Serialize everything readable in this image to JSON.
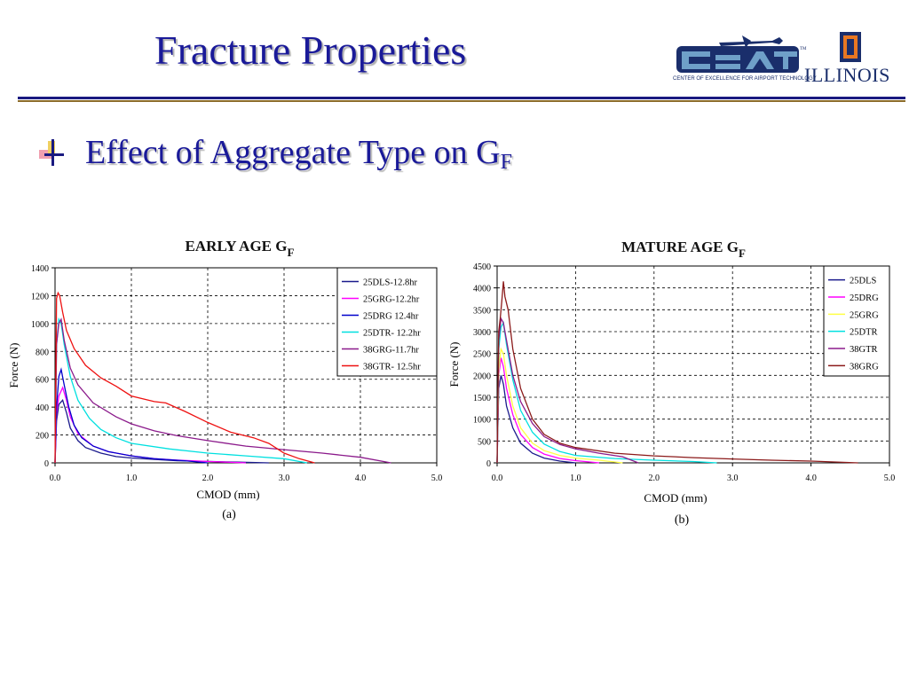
{
  "slide": {
    "title": "Fracture Properties",
    "bullet_main": "Effect of Aggregate Type on G",
    "bullet_sub": "F",
    "logo_text": "ILLINOIS",
    "logo_caption": "CENTER OF EXCELLENCE FOR AIRPORT TECHNOLOGY",
    "logo_tm": "TM"
  },
  "colors": {
    "title": "#1a1a99",
    "rule_top": "#1a1a80",
    "rule_bottom": "#8b6b2a"
  },
  "chart_data": [
    {
      "type": "line",
      "title": "EARLY AGE G",
      "title_sub": "F",
      "xlabel": "CMOD (mm)",
      "ylabel": "Force (N)",
      "caption": "(a)",
      "xlim": [
        0,
        5
      ],
      "ylim": [
        0,
        1400
      ],
      "xticks": [
        0,
        1,
        2,
        3,
        4,
        5
      ],
      "xtick_labels": [
        "0.0",
        "1.0",
        "2.0",
        "3.0",
        "4.0",
        "5.0"
      ],
      "yticks": [
        0,
        200,
        400,
        600,
        800,
        1000,
        1200,
        1400
      ],
      "ytick_labels": [
        "0",
        "200",
        "400",
        "600",
        "800",
        "1000",
        "1200",
        "1400"
      ],
      "grid": true,
      "legend_position": "top-right",
      "series": [
        {
          "name": "25DLS-12.8hr",
          "color": "#1a1a8c",
          "x": [
            0,
            0.02,
            0.05,
            0.1,
            0.15,
            0.2,
            0.3,
            0.4,
            0.6,
            0.8,
            1.0,
            1.3,
            1.6,
            2.0,
            2.4,
            2.8
          ],
          "y": [
            0,
            300,
            420,
            450,
            360,
            250,
            160,
            110,
            70,
            45,
            35,
            25,
            15,
            10,
            5,
            0
          ]
        },
        {
          "name": "25GRG-12.2hr",
          "color": "#ff00ff",
          "x": [
            0,
            0.02,
            0.05,
            0.1,
            0.15,
            0.2,
            0.3,
            0.5,
            0.7,
            1.0,
            1.3,
            1.6,
            2.0,
            2.5
          ],
          "y": [
            0,
            350,
            480,
            540,
            450,
            330,
            210,
            120,
            80,
            50,
            30,
            20,
            10,
            0
          ]
        },
        {
          "name": "25DRG 12.4hr",
          "color": "#0000cc",
          "x": [
            0,
            0.02,
            0.05,
            0.08,
            0.12,
            0.18,
            0.25,
            0.35,
            0.5,
            0.7,
            1.0,
            1.3,
            1.7,
            2.0
          ],
          "y": [
            0,
            400,
            620,
            670,
            560,
            400,
            270,
            180,
            120,
            80,
            50,
            30,
            15,
            0
          ]
        },
        {
          "name": "25DTR- 12.2hr",
          "color": "#00e0e0",
          "x": [
            0,
            0.02,
            0.05,
            0.08,
            0.12,
            0.2,
            0.3,
            0.45,
            0.6,
            0.8,
            1.0,
            1.5,
            2.0,
            2.5,
            3.0,
            3.3
          ],
          "y": [
            0,
            850,
            1030,
            1000,
            850,
            620,
            450,
            320,
            240,
            180,
            140,
            100,
            70,
            50,
            30,
            0
          ]
        },
        {
          "name": "38GRG-11.7hr",
          "color": "#8b1a8b",
          "x": [
            0,
            0.02,
            0.05,
            0.08,
            0.12,
            0.2,
            0.3,
            0.5,
            0.8,
            1.0,
            1.3,
            1.6,
            2.0,
            2.5,
            3.0,
            3.5,
            4.0,
            4.4
          ],
          "y": [
            0,
            850,
            1000,
            1030,
            880,
            680,
            560,
            430,
            330,
            280,
            230,
            195,
            160,
            120,
            95,
            70,
            40,
            0
          ]
        },
        {
          "name": "38GTR- 12.5hr",
          "color": "#ee1111",
          "x": [
            0,
            0.02,
            0.04,
            0.06,
            0.1,
            0.15,
            0.25,
            0.4,
            0.6,
            0.8,
            1.0,
            1.3,
            1.45,
            1.7,
            2.0,
            2.3,
            2.6,
            2.8,
            3.0,
            3.2,
            3.4
          ],
          "y": [
            0,
            1180,
            1220,
            1200,
            1080,
            950,
            820,
            700,
            610,
            550,
            480,
            440,
            430,
            370,
            290,
            220,
            180,
            140,
            70,
            30,
            0
          ]
        }
      ]
    },
    {
      "type": "line",
      "title": "MATURE AGE G",
      "title_sub": "F",
      "xlabel": "CMOD (mm)",
      "ylabel": "Force (N)",
      "caption": "(b)",
      "xlim": [
        0,
        5
      ],
      "ylim": [
        0,
        4500
      ],
      "xticks": [
        0,
        1,
        2,
        3,
        4,
        5
      ],
      "xtick_labels": [
        "0.0",
        "1.0",
        "2.0",
        "3.0",
        "4.0",
        "5.0"
      ],
      "yticks": [
        0,
        500,
        1000,
        1500,
        2000,
        2500,
        3000,
        3500,
        4000,
        4500
      ],
      "ytick_labels": [
        "0",
        "500",
        "1000",
        "1500",
        "2000",
        "2500",
        "3000",
        "3500",
        "4000",
        "4500"
      ],
      "grid": true,
      "legend_position": "top-right",
      "series": [
        {
          "name": "25DLS",
          "color": "#1a1a8c",
          "x": [
            0,
            0.02,
            0.05,
            0.08,
            0.12,
            0.2,
            0.3,
            0.45,
            0.6,
            0.8,
            1.0
          ],
          "y": [
            0,
            1700,
            2000,
            1800,
            1300,
            800,
            450,
            220,
            110,
            40,
            0
          ]
        },
        {
          "name": "25DRG",
          "color": "#ff00ff",
          "x": [
            0,
            0.02,
            0.05,
            0.08,
            0.12,
            0.2,
            0.3,
            0.45,
            0.6,
            0.8,
            1.0,
            1.3
          ],
          "y": [
            0,
            2000,
            2400,
            2200,
            1700,
            1100,
            650,
            350,
            200,
            100,
            50,
            0
          ]
        },
        {
          "name": "25GRG",
          "color": "#ffff44",
          "x": [
            0,
            0.02,
            0.05,
            0.08,
            0.12,
            0.2,
            0.3,
            0.45,
            0.6,
            0.8,
            1.0,
            1.3,
            1.6
          ],
          "y": [
            0,
            2100,
            2600,
            2500,
            2000,
            1300,
            800,
            450,
            280,
            170,
            110,
            60,
            0
          ]
        },
        {
          "name": "25DTR",
          "color": "#00e0e0",
          "x": [
            0,
            0.02,
            0.05,
            0.08,
            0.12,
            0.2,
            0.3,
            0.45,
            0.6,
            0.8,
            1.0,
            1.5,
            2.0,
            2.5,
            2.8
          ],
          "y": [
            0,
            2600,
            3100,
            3200,
            2700,
            1900,
            1200,
            700,
            430,
            260,
            170,
            100,
            60,
            30,
            0
          ]
        },
        {
          "name": "38GTR",
          "color": "#8b1a8b",
          "x": [
            0,
            0.02,
            0.05,
            0.08,
            0.12,
            0.2,
            0.3,
            0.45,
            0.6,
            0.8,
            1.0,
            1.3,
            1.6,
            1.8
          ],
          "y": [
            0,
            2800,
            3300,
            3200,
            2800,
            2000,
            1400,
            900,
            600,
            420,
            320,
            220,
            140,
            0
          ]
        },
        {
          "name": "38GRG",
          "color": "#8b1a1a",
          "x": [
            0,
            0.02,
            0.04,
            0.06,
            0.08,
            0.1,
            0.14,
            0.2,
            0.3,
            0.45,
            0.6,
            0.8,
            1.0,
            1.5,
            2.0,
            2.5,
            3.0,
            3.5,
            4.0,
            4.6
          ],
          "y": [
            0,
            3000,
            3300,
            3700,
            4150,
            3800,
            3500,
            2600,
            1700,
            1000,
            650,
            450,
            350,
            220,
            160,
            120,
            90,
            60,
            40,
            0
          ]
        }
      ]
    }
  ]
}
